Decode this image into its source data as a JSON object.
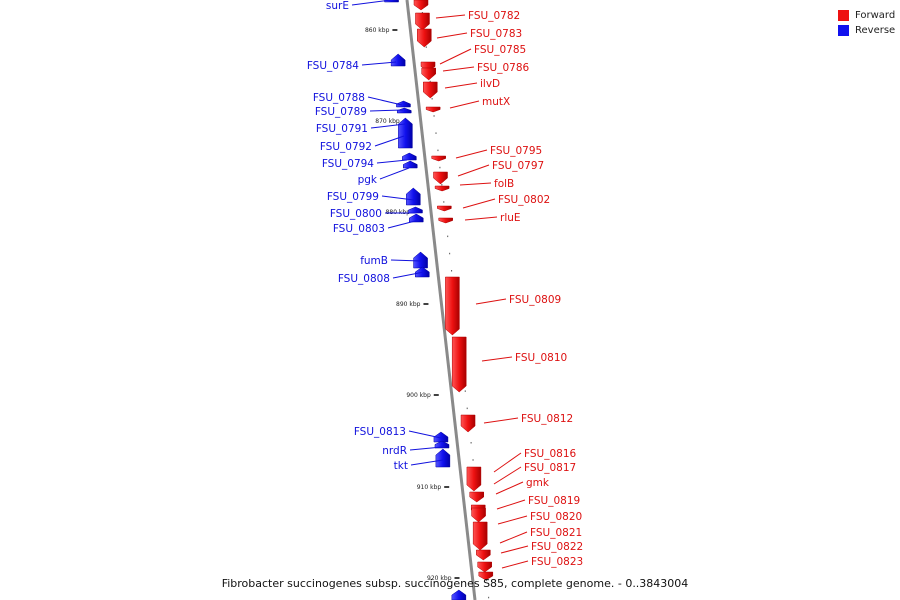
{
  "legend": {
    "forward_label": "Forward",
    "reverse_label": "Reverse",
    "forward_color": "#ee1111",
    "reverse_color": "#1111ee"
  },
  "caption": "Fibrobacter succinogenes subsp. succinogenes S85, complete genome. - 0..3843004",
  "scale_labels": [
    "860 kbp",
    "870 kbp",
    "880 kbp",
    "890 kbp",
    "900 kbp",
    "910 kbp",
    "920 kbp"
  ],
  "forward_genes": [
    "FSU_0782",
    "FSU_0783",
    "FSU_0785",
    "FSU_0786",
    "ilvD",
    "mutX",
    "FSU_0795",
    "FSU_0797",
    "folB",
    "FSU_0802",
    "rluE",
    "FSU_0809",
    "FSU_0810",
    "FSU_0812",
    "FSU_0816",
    "FSU_0817",
    "gmk",
    "FSU_0819",
    "FSU_0820",
    "FSU_0821",
    "FSU_0822",
    "FSU_0823"
  ],
  "reverse_genes": [
    "surE",
    "FSU_0784",
    "FSU_0788",
    "FSU_0789",
    "FSU_0791",
    "FSU_0792",
    "FSU_0794",
    "pgk",
    "FSU_0799",
    "FSU_0800",
    "FSU_0803",
    "fumB",
    "FSU_0808",
    "FSU_0813",
    "nrdR",
    "tkt"
  ]
}
